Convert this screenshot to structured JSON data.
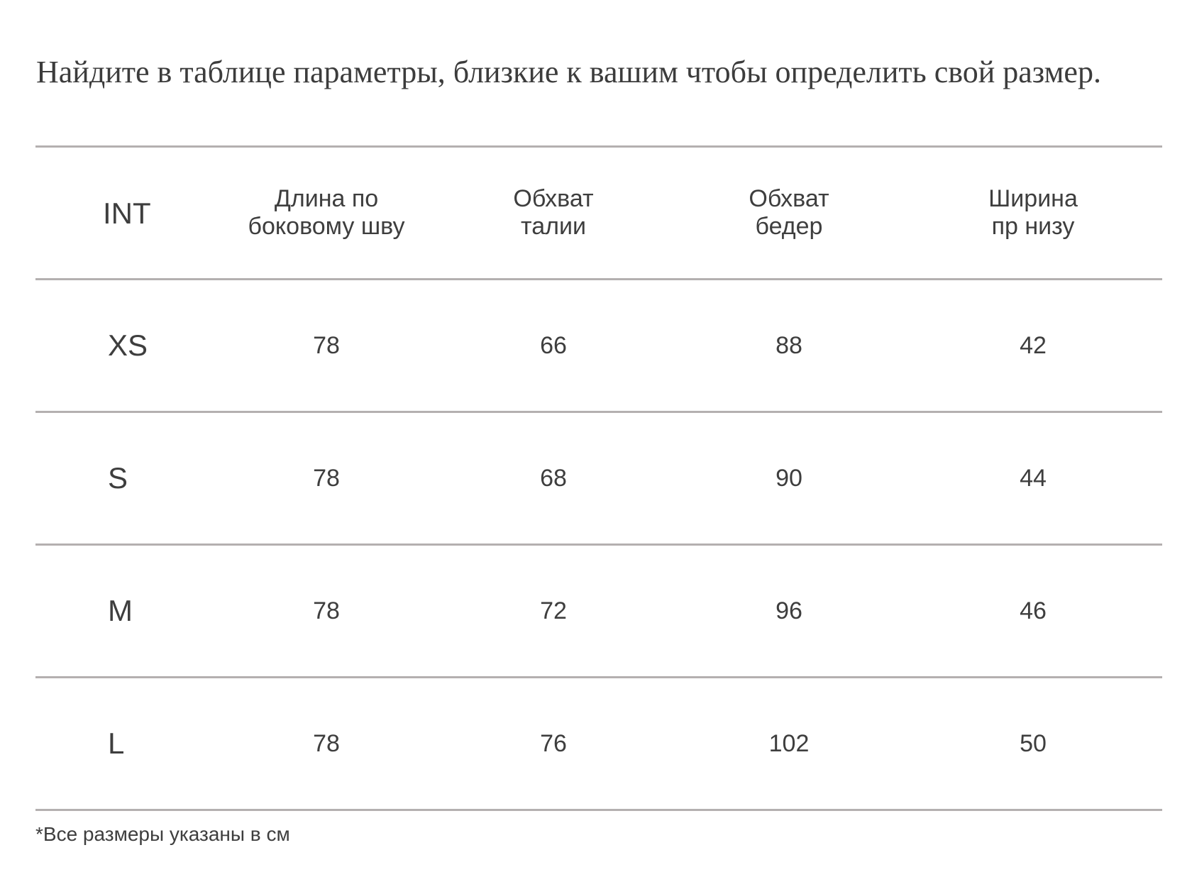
{
  "intro_text": "Найдите в таблице параметры, близкие к вашим чтобы определить свой размер.",
  "table": {
    "headers": [
      {
        "lines": [
          "INT"
        ]
      },
      {
        "lines": [
          "Длина по",
          "боковому шву"
        ]
      },
      {
        "lines": [
          "Обхват",
          "талии"
        ]
      },
      {
        "lines": [
          "Обхват",
          "бедер"
        ]
      },
      {
        "lines": [
          "Ширина",
          "пр низу"
        ]
      }
    ],
    "rows": [
      {
        "size": "XS",
        "values": [
          "78",
          "66",
          "88",
          "42"
        ]
      },
      {
        "size": "S",
        "values": [
          "78",
          "68",
          "90",
          "44"
        ]
      },
      {
        "size": "M",
        "values": [
          "78",
          "72",
          "96",
          "46"
        ]
      },
      {
        "size": "L",
        "values": [
          "78",
          "76",
          "102",
          "50"
        ]
      }
    ]
  },
  "footnote": "*Все размеры указаны в см",
  "colors": {
    "text": "#3e3e3e",
    "rule": "#b4b0b0",
    "background": "#ffffff"
  }
}
